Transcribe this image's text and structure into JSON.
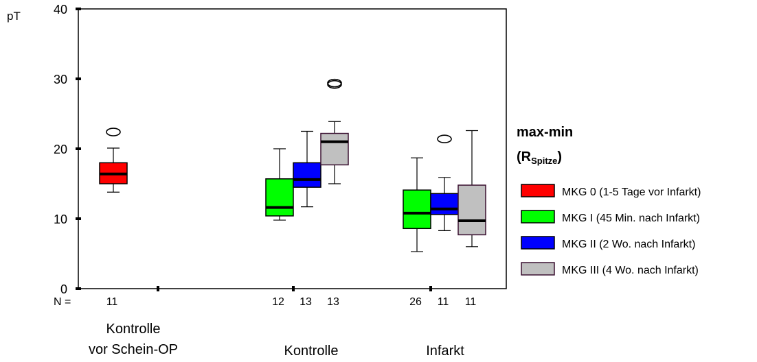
{
  "chart_data": {
    "type": "box",
    "ylabel": "pT",
    "ylim": [
      0,
      40
    ],
    "yticks": [
      0,
      10,
      20,
      30,
      40
    ],
    "n_label": "N =",
    "legend": {
      "title": "max-min",
      "subtitle_main": "(R",
      "subtitle_sub": "Spitze",
      "subtitle_end": ")",
      "placement": "right"
    },
    "series": [
      {
        "name": "MKG 0 (1-5 Tage vor Infarkt)",
        "color": "#ff0000"
      },
      {
        "name": "MKG I (45 Min. nach Infarkt)",
        "color": "#00ff00"
      },
      {
        "name": "MKG II (2 Wo. nach Infarkt)",
        "color": "#0000ff"
      },
      {
        "name": "MKG III (4 Wo. nach Infarkt)",
        "color": "#c0c0c0"
      }
    ],
    "groups": [
      {
        "label_lines": [
          "Kontrolle",
          "vor Schein-OP"
        ]
      },
      {
        "label_lines": [
          "Kontrolle"
        ]
      },
      {
        "label_lines": [
          "Infarkt"
        ]
      }
    ],
    "boxes": [
      {
        "group": 0,
        "series": 0,
        "n": "11",
        "min": 13.8,
        "q1": 15.0,
        "median": 16.4,
        "q3": 18.0,
        "max": 20.1,
        "outliers": [
          22.4
        ]
      },
      {
        "group": 1,
        "series": 1,
        "n": "12",
        "min": 9.8,
        "q1": 10.4,
        "median": 11.6,
        "q3": 15.7,
        "max": 20.0,
        "outliers": []
      },
      {
        "group": 1,
        "series": 2,
        "n": "13",
        "min": 11.7,
        "q1": 14.5,
        "median": 15.6,
        "q3": 18.0,
        "max": 22.5,
        "outliers": []
      },
      {
        "group": 1,
        "series": 3,
        "n": "13",
        "min": 15.0,
        "q1": 17.7,
        "median": 21.0,
        "q3": 22.2,
        "max": 23.9,
        "outliers": [
          29.2,
          29.4
        ]
      },
      {
        "group": 2,
        "series": 1,
        "n": "26",
        "min": 5.3,
        "q1": 8.6,
        "median": 10.8,
        "q3": 14.1,
        "max": 18.7,
        "outliers": []
      },
      {
        "group": 2,
        "series": 2,
        "n": "11",
        "min": 8.3,
        "q1": 10.6,
        "median": 11.4,
        "q3": 13.6,
        "max": 15.9,
        "outliers": [
          21.4
        ]
      },
      {
        "group": 2,
        "series": 3,
        "n": "11",
        "min": 6.0,
        "q1": 7.7,
        "median": 9.7,
        "q3": 14.8,
        "max": 22.6,
        "outliers": []
      }
    ]
  }
}
